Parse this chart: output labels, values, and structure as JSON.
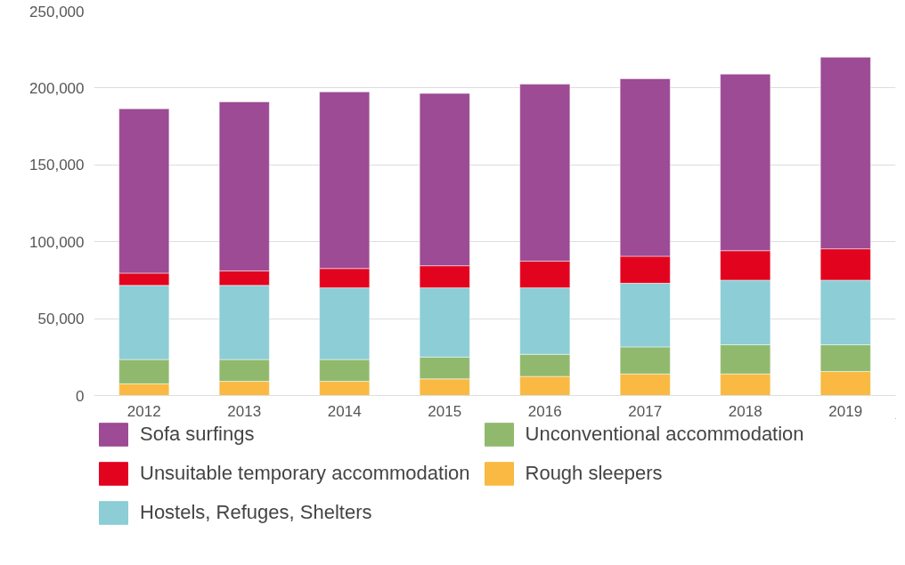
{
  "chart_data": {
    "type": "bar",
    "stacked": true,
    "categories": [
      "2012",
      "2013",
      "2014",
      "2015",
      "2016",
      "2017",
      "2018",
      "2019"
    ],
    "series": [
      {
        "name": "Rough sleepers",
        "color": "#f9b942",
        "values": [
          7600,
          9200,
          9200,
          10800,
          12400,
          14000,
          14000,
          15600
        ]
      },
      {
        "name": "Unconventional accommodation",
        "color": "#90b96d",
        "values": [
          15800,
          14200,
          14200,
          14200,
          14400,
          17600,
          19000,
          17400
        ]
      },
      {
        "name": "Hostels, Refuges, Shelters",
        "color": "#8ccdd6",
        "values": [
          48200,
          48200,
          46600,
          45000,
          43200,
          41400,
          42000,
          42000
        ]
      },
      {
        "name": "Unsuitable temporary accommodation",
        "color": "#e2041f",
        "values": [
          8000,
          9400,
          12600,
          14400,
          17400,
          17600,
          19200,
          20400
        ]
      },
      {
        "name": "Sofa surfings",
        "color": "#9c4b94",
        "values": [
          106900,
          110000,
          114900,
          112100,
          115100,
          115400,
          114800,
          124600
        ]
      }
    ],
    "ylim": [
      0,
      250000
    ],
    "yticks": [
      {
        "value": 0,
        "label": "0"
      },
      {
        "value": 50000,
        "label": "50,000"
      },
      {
        "value": 100000,
        "label": "100,000"
      },
      {
        "value": 150000,
        "label": "150,000"
      },
      {
        "value": 200000,
        "label": "200,000"
      },
      {
        "value": 250000,
        "label": "250,000"
      }
    ],
    "grid": "y",
    "legend": "bottom"
  }
}
